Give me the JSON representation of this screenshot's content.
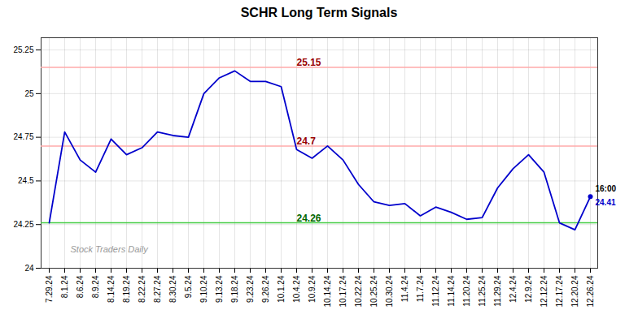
{
  "chart_data": {
    "type": "line",
    "title": "SCHR Long Term Signals",
    "watermark": "Stock Traders Daily",
    "color": "#0000cc",
    "marker": "circle",
    "categories": [
      "7.29.24",
      "8.1.24",
      "8.6.24",
      "8.9.24",
      "8.14.24",
      "8.19.24",
      "8.22.24",
      "8.27.24",
      "8.30.24",
      "9.5.24",
      "9.10.24",
      "9.13.24",
      "9.18.24",
      "9.23.24",
      "9.26.24",
      "10.1.24",
      "10.4.24",
      "10.9.24",
      "10.14.24",
      "10.17.24",
      "10.22.24",
      "10.25.24",
      "10.30.24",
      "11.4.24",
      "11.7.24",
      "11.12.24",
      "11.14.24",
      "11.20.24",
      "11.25.24",
      "11.29.24",
      "12.4.24",
      "12.9.24",
      "12.12.24",
      "12.17.24",
      "12.20.24",
      "12.26.24"
    ],
    "values": [
      24.26,
      24.78,
      24.62,
      24.55,
      24.74,
      24.65,
      24.69,
      24.78,
      24.76,
      24.75,
      25.0,
      25.09,
      25.13,
      25.07,
      25.07,
      25.04,
      24.68,
      24.63,
      24.7,
      24.62,
      24.48,
      24.38,
      24.36,
      24.37,
      24.3,
      24.35,
      24.32,
      24.28,
      24.29,
      24.46,
      24.57,
      24.65,
      24.55,
      24.26,
      24.22,
      24.41
    ],
    "hlines": [
      {
        "value": 25.15,
        "label": "25.15",
        "color": "#ffaaaa",
        "label_color": "#990000"
      },
      {
        "value": 24.7,
        "label": "24.7",
        "color": "#ffaaaa",
        "label_color": "#990000"
      },
      {
        "value": 24.26,
        "label": "24.26",
        "color": "#44cc44",
        "label_color": "#006600"
      }
    ],
    "hline_label_at": "10.4.24",
    "end_labels": {
      "time": "16:00",
      "value": "24.41"
    },
    "ylim": [
      24.0,
      25.32
    ],
    "yticks": [
      24,
      24.25,
      24.5,
      24.75,
      25,
      25.25
    ],
    "grid": true
  }
}
